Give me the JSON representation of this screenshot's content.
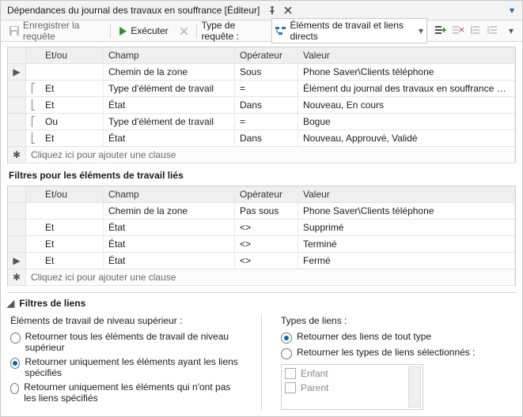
{
  "title": "Dépendances du journal des travaux en souffrance [Éditeur]",
  "toolbar": {
    "save": "Enregistrer la requête",
    "run": "Exécuter",
    "type_label": "Type de requête :",
    "type_value": "Éléments de travail et liens directs"
  },
  "grid_headers": {
    "andor": "Et/ou",
    "field": "Champ",
    "op": "Opérateur",
    "val": "Valeur"
  },
  "clauses_top": [
    {
      "handle": "▶",
      "bracket": "",
      "andor": "",
      "field": "Chemin de la zone",
      "op": "Sous",
      "val": "Phone Saver\\Clients téléphone"
    },
    {
      "handle": "",
      "bracket": "⎡",
      "andor": "Et",
      "field": "Type d'élément de travail",
      "op": "=",
      "val": "Élément du journal des travaux en souffrance du produit"
    },
    {
      "handle": "",
      "bracket": "⎣",
      "andor": "Et",
      "field": "État",
      "op": "Dans",
      "val": "Nouveau, En cours"
    },
    {
      "handle": "",
      "bracket": "⎡",
      "andor": "Ou",
      "field": "Type d'élément de travail",
      "op": "=",
      "val": "Bogue"
    },
    {
      "handle": "",
      "bracket": "⎣",
      "andor": "Et",
      "field": "État",
      "op": "Dans",
      "val": "Nouveau, Approuvé, Validé"
    }
  ],
  "add_clause": "Cliquez ici pour ajouter une clause",
  "linked_label": "Filtres pour les éléments de travail liés",
  "clauses_linked": [
    {
      "handle": "",
      "andor": "",
      "field": "Chemin de la zone",
      "op": "Pas sous",
      "val": "Phone Saver\\Clients téléphone"
    },
    {
      "handle": "",
      "andor": "Et",
      "field": "État",
      "op": "<>",
      "val": "Supprimé"
    },
    {
      "handle": "",
      "andor": "Et",
      "field": "État",
      "op": "<>",
      "val": "Terminé"
    },
    {
      "handle": "▶",
      "andor": "Et",
      "field": "État",
      "op": "<>",
      "val": "Fermé"
    }
  ],
  "link_filters": {
    "title": "Filtres de liens",
    "top_level_label": "Éléments de travail de niveau supérieur :",
    "types_label": "Types de liens :",
    "opt1": "Retourner tous les éléments de travail de niveau supérieur",
    "opt2": "Retourner uniquement les éléments ayant les liens spécifiés",
    "opt3": "Retourner uniquement les éléments qui n'ont pas les liens spécifiés",
    "type_opt1": "Retourner des liens de tout type",
    "type_opt2": "Retourner les types de liens sélectionnés :",
    "type_items": [
      "Enfant",
      "Parent"
    ]
  },
  "colors": {
    "accent": "#0a63b0"
  }
}
